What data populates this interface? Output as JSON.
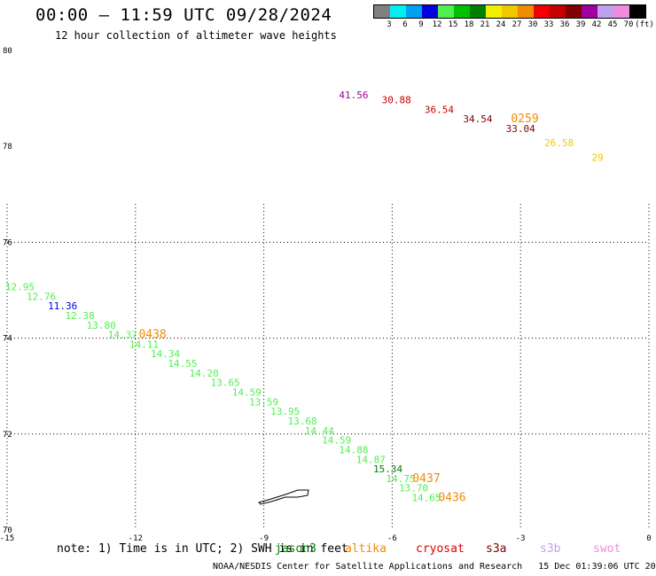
{
  "header": {
    "title": "00:00 — 11:59 UTC 09/28/2024",
    "subtitle": "12 hour collection of altimeter wave heights"
  },
  "color_scale": {
    "labels": [
      "3",
      "6",
      "9",
      "12",
      "15",
      "18",
      "21",
      "24",
      "27",
      "30",
      "33",
      "36",
      "39",
      "42",
      "45",
      "70",
      "(ft)"
    ],
    "colors": [
      "#808080",
      "#00f0f0",
      "#00a0f0",
      "#0000e0",
      "#50f050",
      "#00c000",
      "#008000",
      "#f0f000",
      "#f0c800",
      "#f08c00",
      "#f00000",
      "#c80000",
      "#800000",
      "#a000a0",
      "#c0a0f0",
      "#f08ce0",
      "#000000"
    ]
  },
  "legend": {
    "note": "note: 1) Time is in UTC; 2) SWH is in feet",
    "satellites": [
      {
        "name": "jason3",
        "color": "#008000"
      },
      {
        "name": "altika",
        "color": "#f08c00"
      },
      {
        "name": "cryosat",
        "color": "#e00000"
      },
      {
        "name": "s3a",
        "color": "#800000"
      },
      {
        "name": "s3b",
        "color": "#c0a0f0"
      },
      {
        "name": "swot",
        "color": "#f08ce0"
      }
    ]
  },
  "footer": "NOAA/NESDIS Center for Satellite Applications and Research   15 Dec 01:39:06 UTC 2024",
  "chart_data": {
    "type": "scatter",
    "xlim": [
      -15,
      0
    ],
    "ylim": [
      70,
      80
    ],
    "x_ticks": [
      "-15",
      "-12",
      "-9",
      "-6",
      "-3",
      "0"
    ],
    "y_ticks": [
      "70",
      "72",
      "74",
      "76",
      "78",
      "80"
    ],
    "grid": true,
    "tracks": [
      {
        "points": [
          {
            "x": -6.9,
            "y": 79.0,
            "label": "41.56",
            "color": "#a000a0"
          },
          {
            "x": -5.9,
            "y": 78.9,
            "label": "30.88",
            "color": "#c80000"
          },
          {
            "x": -4.9,
            "y": 78.7,
            "label": "36.54",
            "color": "#c80000"
          },
          {
            "x": -4.0,
            "y": 78.5,
            "label": "34.54",
            "color": "#800000"
          },
          {
            "x": -3.0,
            "y": 78.3,
            "label": "33.04",
            "color": "#800000"
          },
          {
            "x": -2.1,
            "y": 78.0,
            "label": "26.58",
            "color": "#f0c800"
          },
          {
            "x": -1.2,
            "y": 77.7,
            "label": "29",
            "color": "#f0c800"
          }
        ],
        "time_labels": [
          {
            "x": -2.9,
            "y": 78.5,
            "label": "0259",
            "color": "#f08c00"
          }
        ]
      },
      {
        "points": [
          {
            "x": -14.7,
            "y": 75.0,
            "label": "12.95",
            "color": "#50f050"
          },
          {
            "x": -14.2,
            "y": 74.8,
            "label": "12.76",
            "color": "#50f050"
          },
          {
            "x": -13.7,
            "y": 74.6,
            "label": "11.36",
            "color": "#0000e0"
          },
          {
            "x": -13.3,
            "y": 74.4,
            "label": "12.38",
            "color": "#50f050"
          },
          {
            "x": -12.8,
            "y": 74.2,
            "label": "13.80",
            "color": "#50f050"
          },
          {
            "x": -12.3,
            "y": 74.0,
            "label": "14.37",
            "color": "#50f050"
          },
          {
            "x": -11.8,
            "y": 73.8,
            "label": "14.11",
            "color": "#50f050"
          },
          {
            "x": -11.3,
            "y": 73.6,
            "label": "14.34",
            "color": "#50f050"
          },
          {
            "x": -10.9,
            "y": 73.4,
            "label": "14.55",
            "color": "#50f050"
          },
          {
            "x": -10.4,
            "y": 73.2,
            "label": "14.20",
            "color": "#50f050"
          },
          {
            "x": -9.9,
            "y": 73.0,
            "label": "13.65",
            "color": "#50f050"
          },
          {
            "x": -9.4,
            "y": 72.8,
            "label": "14.59",
            "color": "#50f050"
          },
          {
            "x": -9.0,
            "y": 72.6,
            "label": "13.59",
            "color": "#50f050"
          },
          {
            "x": -8.5,
            "y": 72.4,
            "label": "13.95",
            "color": "#50f050"
          },
          {
            "x": -8.1,
            "y": 72.2,
            "label": "13.68",
            "color": "#50f050"
          },
          {
            "x": -7.7,
            "y": 72.0,
            "label": "14.44",
            "color": "#50f050"
          },
          {
            "x": -7.3,
            "y": 71.8,
            "label": "14.59",
            "color": "#50f050"
          },
          {
            "x": -6.9,
            "y": 71.6,
            "label": "14.88",
            "color": "#50f050"
          },
          {
            "x": -6.5,
            "y": 71.4,
            "label": "14.87",
            "color": "#50f050"
          },
          {
            "x": -6.1,
            "y": 71.2,
            "label": "15.34",
            "color": "#008000"
          },
          {
            "x": -5.8,
            "y": 71.0,
            "label": "14.75",
            "color": "#50f050"
          },
          {
            "x": -5.5,
            "y": 70.8,
            "label": "13.70",
            "color": "#50f050"
          },
          {
            "x": -5.2,
            "y": 70.6,
            "label": "14.65",
            "color": "#50f050"
          }
        ],
        "time_labels": [
          {
            "x": -11.6,
            "y": 74.0,
            "label": "0438",
            "color": "#f08c00"
          },
          {
            "x": -5.2,
            "y": 71.0,
            "label": "0437",
            "color": "#f08c00"
          },
          {
            "x": -4.6,
            "y": 70.6,
            "label": "0436",
            "color": "#f08c00"
          }
        ]
      }
    ]
  }
}
